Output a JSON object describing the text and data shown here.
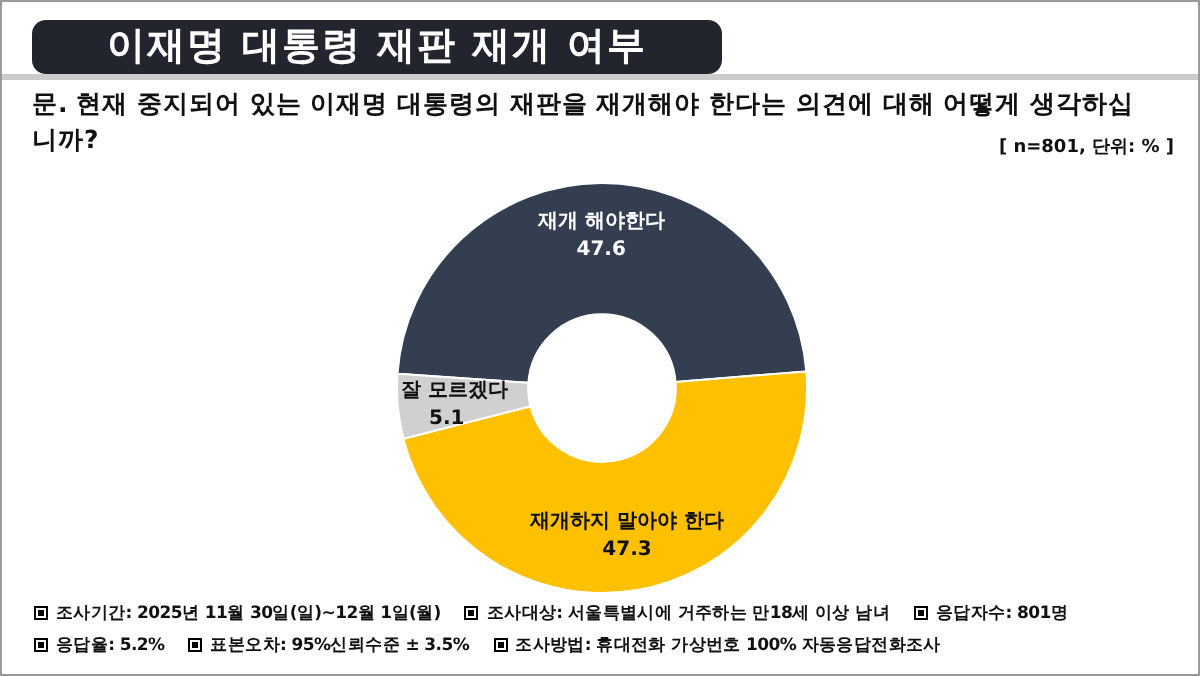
{
  "chart_data": {
    "type": "donut",
    "title": "이재명 대통령 재판 재개 여부",
    "subtitle": "문. 현재 중지되어 있는 이재명 대통령의 재판을 재개해야 한다는 의견에 대해 어떻게 생각하십니까?",
    "categories": [
      "재개 해야한다",
      "재개하지 말아야 한다",
      "잘 모르겠다"
    ],
    "values": [
      47.6,
      47.3,
      5.1
    ],
    "colors": [
      "#333e50",
      "#ffc000",
      "#d0d0d0"
    ],
    "data_labels": true,
    "legend": false,
    "annotations": [
      "[ n=801, 단위: % ]",
      "조사기간: 2025년 11월 30일(일)~12월 1일(월)",
      "조사대상: 서울특별시에 거주하는 만18세 이상 남녀",
      "응답자수: 801명",
      "응답율: 5.2%",
      "표본오차: 95%신뢰수준 ± 3.5%",
      "조사방법: 휴대전화 가상번호 100% 자동응답전화조사"
    ]
  }
}
